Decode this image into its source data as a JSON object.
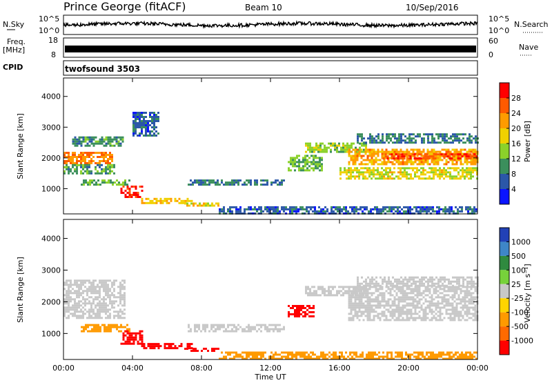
{
  "header": {
    "station": "Prince George (fitACF)",
    "beam": "Beam 10",
    "date": "10/Sep/2016"
  },
  "top_strip": {
    "left_top": "N.Sky",
    "left_freq_1": "Freq.",
    "left_freq_2": "[MHz]",
    "left_cpid": "CPID",
    "nsky_ticks": [
      "10^5",
      "10^0"
    ],
    "freq_ticks": [
      "18",
      "8"
    ],
    "right_ticks": [
      "10^5",
      "10^0"
    ],
    "nave_ticks": [
      "60",
      "0"
    ],
    "right_nsearch": "N.Search",
    "right_nave": "Nave",
    "cpid_text": "twofsound 3503"
  },
  "panels": {
    "ylabel": "Slant Range [km]",
    "yticks": [
      "4000",
      "3000",
      "2000",
      "1000"
    ],
    "xticks": [
      "00:00",
      "04:00",
      "08:00",
      "12:00",
      "16:00",
      "20:00",
      "00:00"
    ],
    "xlabel": "Time UT"
  },
  "colorbars": {
    "power": {
      "label": "Power [dB]",
      "ticks": [
        "28",
        "24",
        "20",
        "16",
        "12",
        "8",
        "4"
      ],
      "colors": [
        "#ff0000",
        "#ff5a00",
        "#ff9b00",
        "#f0d000",
        "#8bd12a",
        "#3b8f5c",
        "#2b57a8",
        "#0a14ff"
      ]
    },
    "velocity": {
      "label": "Velocity [m s⁻¹]",
      "ticks": [
        "1000",
        "500",
        "100",
        "25",
        "-25",
        "-100",
        "-500",
        "-1000"
      ],
      "colors": [
        "#2141b6",
        "#3e86c7",
        "#2f8a3f",
        "#77d13b",
        "#c8c8c8",
        "#ffd400",
        "#ff9a00",
        "#ff6a00",
        "#ff0000"
      ]
    }
  },
  "chart_data": [
    {
      "type": "heatmap",
      "title": "Power",
      "xlabel": "Time UT",
      "ylabel": "Slant Range [km]",
      "xlim": [
        0,
        24
      ],
      "ylim": [
        180,
        4600
      ],
      "colorbar": {
        "label": "Power [dB]",
        "range": [
          0,
          30
        ]
      },
      "regions": [
        {
          "t0": 0.0,
          "t1": 2.8,
          "r0": 1800,
          "r1": 2200,
          "v": 22
        },
        {
          "t0": 0.0,
          "t1": 3.0,
          "r0": 1500,
          "r1": 1800,
          "v": 10
        },
        {
          "t0": 0.5,
          "t1": 3.5,
          "r0": 2400,
          "r1": 2700,
          "v": 9
        },
        {
          "t0": 1.0,
          "t1": 3.8,
          "r0": 1100,
          "r1": 1300,
          "v": 11
        },
        {
          "t0": 3.3,
          "t1": 4.6,
          "r0": 700,
          "r1": 1100,
          "v": 27
        },
        {
          "t0": 4.0,
          "t1": 5.5,
          "r0": 2700,
          "r1": 3500,
          "v": 6
        },
        {
          "t0": 4.5,
          "t1": 7.5,
          "r0": 550,
          "r1": 700,
          "v": 18
        },
        {
          "t0": 7.0,
          "t1": 9.0,
          "r0": 430,
          "r1": 550,
          "v": 17
        },
        {
          "t0": 7.2,
          "t1": 12.8,
          "r0": 1100,
          "r1": 1300,
          "v": 8
        },
        {
          "t0": 13.0,
          "t1": 15.0,
          "r0": 1600,
          "r1": 2100,
          "v": 12
        },
        {
          "t0": 14.0,
          "t1": 17.5,
          "r0": 2200,
          "r1": 2500,
          "v": 13
        },
        {
          "t0": 16.5,
          "t1": 24.0,
          "r0": 1800,
          "r1": 2300,
          "v": 20
        },
        {
          "t0": 18.5,
          "t1": 24.0,
          "r0": 1950,
          "r1": 2150,
          "v": 26
        },
        {
          "t0": 16.0,
          "t1": 24.0,
          "r0": 1300,
          "r1": 1700,
          "v": 16
        },
        {
          "t0": 17.0,
          "t1": 24.0,
          "r0": 2500,
          "r1": 2800,
          "v": 8
        },
        {
          "t0": 9.0,
          "t1": 24.0,
          "r0": 200,
          "r1": 430,
          "v": 6
        }
      ]
    },
    {
      "type": "heatmap",
      "title": "Velocity",
      "xlabel": "Time UT",
      "ylabel": "Slant Range [km]",
      "xlim": [
        0,
        24
      ],
      "ylim": [
        180,
        4600
      ],
      "colorbar": {
        "label": "Velocity [m s^-1]",
        "range": [
          -1000,
          1000
        ]
      },
      "regions": [
        {
          "t0": 0.0,
          "t1": 3.5,
          "r0": 1500,
          "r1": 2700,
          "v": 0
        },
        {
          "t0": 1.0,
          "t1": 3.8,
          "r0": 1100,
          "r1": 1300,
          "v": -40
        },
        {
          "t0": 3.3,
          "t1": 4.6,
          "r0": 700,
          "r1": 1100,
          "v": -300
        },
        {
          "t0": 4.5,
          "t1": 7.5,
          "r0": 550,
          "r1": 700,
          "v": -600
        },
        {
          "t0": 7.0,
          "t1": 9.0,
          "r0": 430,
          "r1": 550,
          "v": -500
        },
        {
          "t0": 7.2,
          "t1": 12.8,
          "r0": 1100,
          "r1": 1300,
          "v": 0
        },
        {
          "t0": 13.0,
          "t1": 14.5,
          "r0": 1550,
          "r1": 1900,
          "v": -300
        },
        {
          "t0": 14.0,
          "t1": 17.5,
          "r0": 2200,
          "r1": 2500,
          "v": 0
        },
        {
          "t0": 16.5,
          "t1": 24.0,
          "r0": 1400,
          "r1": 2500,
          "v": 0
        },
        {
          "t0": 17.0,
          "t1": 24.0,
          "r0": 2500,
          "r1": 2800,
          "v": 0
        },
        {
          "t0": 9.0,
          "t1": 24.0,
          "r0": 200,
          "r1": 430,
          "v": -80
        }
      ]
    }
  ]
}
